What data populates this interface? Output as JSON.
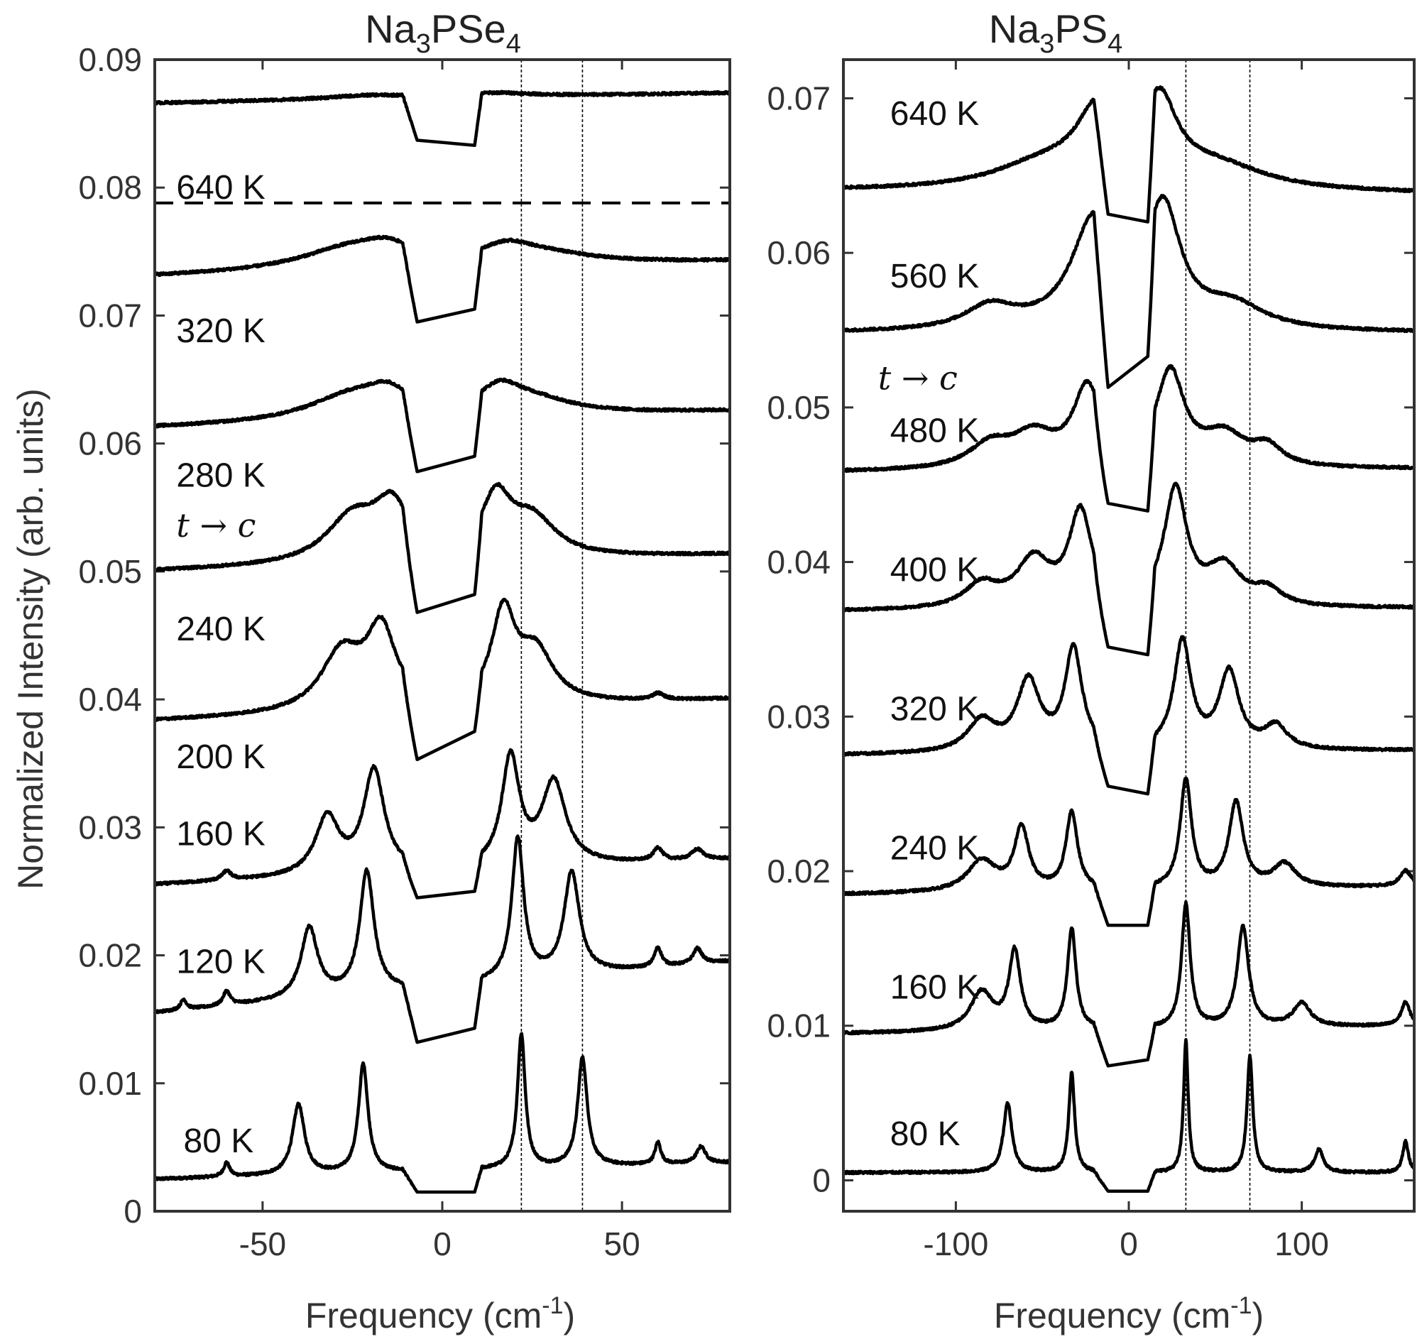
{
  "chart_data": [
    {
      "type": "line",
      "title": "Na3PSe4",
      "title_parts": {
        "pre": "Na",
        "sub1": "3",
        "mid": "PSe",
        "sub2": "4"
      },
      "xlabel": "Frequency (cm-1)",
      "xlabel_parts": {
        "pre": "Frequency (cm",
        "sup": "-1",
        "post": ")"
      },
      "ylabel": "Normalized Intensity (arb. units)",
      "xlim": [
        -80,
        80
      ],
      "ylim": [
        0,
        0.09
      ],
      "xticks": [
        -50,
        0,
        50
      ],
      "xtick_labels": [
        "-50",
        "0",
        "50"
      ],
      "yticks": [
        0,
        0.01,
        0.02,
        0.03,
        0.04,
        0.05,
        0.06,
        0.07,
        0.08,
        0.09
      ],
      "ytick_labels": [
        "0",
        "0.01",
        "0.02",
        "0.03",
        "0.04",
        "0.05",
        "0.06",
        "0.07",
        "0.08",
        "0.09"
      ],
      "vlines": [
        22,
        39
      ],
      "hline": 0.0788,
      "gap": [
        -7,
        9
      ],
      "transition_label": {
        "text": "t → c",
        "x": -74,
        "y": 0.0535
      },
      "series": [
        {
          "name": "80 K",
          "label_x": -72,
          "label_y": 0.0055,
          "baseline": 0.0025,
          "end": 0.0038,
          "gap_left": 0.0015,
          "gap_right": 0.0015,
          "peaks": [
            [
              -60,
              0.0011,
              1.0
            ],
            [
              -40,
              0.0055,
              2.0
            ],
            [
              -22,
              0.0085,
              1.6
            ],
            [
              22,
              0.0105,
              1.3
            ],
            [
              39,
              0.0085,
              1.6
            ],
            [
              60,
              0.0017,
              1.0
            ],
            [
              72,
              0.0013,
              1.5
            ]
          ]
        },
        {
          "name": "120 K",
          "label_x": -74,
          "label_y": 0.0195,
          "baseline": 0.0155,
          "end": 0.0195,
          "gap_left": 0.0132,
          "gap_right": 0.0143,
          "peaks": [
            [
              -72,
              0.0008,
              1.0
            ],
            [
              -60,
              0.0011,
              1.2
            ],
            [
              -37,
              0.0055,
              2.8
            ],
            [
              -21,
              0.0095,
              2.4
            ],
            [
              21,
              0.011,
              2.0
            ],
            [
              36,
              0.008,
              2.6
            ],
            [
              60,
              0.0015,
              1.2
            ],
            [
              71,
              0.0012,
              1.5
            ]
          ]
        },
        {
          "name": "160 K",
          "label_x": -74,
          "label_y": 0.0295,
          "baseline": 0.0255,
          "end": 0.0275,
          "gap_left": 0.0245,
          "gap_right": 0.025,
          "peaks": [
            [
              -60,
              0.0007,
              1.5
            ],
            [
              -32,
              0.0045,
              4.0
            ],
            [
              -19,
              0.008,
              3.5
            ],
            [
              19,
              0.0085,
              3.0
            ],
            [
              31,
              0.0065,
              4.0
            ],
            [
              60,
              0.001,
              1.5
            ],
            [
              71,
              0.0008,
              2.0
            ]
          ]
        },
        {
          "name": "200 K",
          "label_x": -74,
          "label_y": 0.0355,
          "baseline": 0.0383,
          "end": 0.04,
          "gap_left": 0.0353,
          "gap_right": 0.0375,
          "peaks": [
            [
              -28,
              0.0045,
              7.0
            ],
            [
              -17,
              0.006,
              5.0
            ],
            [
              17,
              0.007,
              4.0
            ],
            [
              26,
              0.004,
              6.0
            ],
            [
              60,
              0.0005,
              2.0
            ]
          ]
        },
        {
          "name": "240 K",
          "label_x": -74,
          "label_y": 0.0455,
          "baseline": 0.05,
          "end": 0.0513,
          "gap_left": 0.0468,
          "gap_right": 0.0482,
          "peaks": [
            [
              -25,
              0.0035,
              9.0
            ],
            [
              -14,
              0.004,
              6.0
            ],
            [
              15,
              0.0045,
              5.0
            ],
            [
              25,
              0.003,
              8.0
            ]
          ]
        },
        {
          "name": "280 K",
          "label_x": -74,
          "label_y": 0.0575,
          "baseline": 0.0612,
          "end": 0.0625,
          "gap_left": 0.0578,
          "gap_right": 0.059,
          "peaks": [
            [
              -25,
              0.002,
              15.0
            ],
            [
              -15,
              0.0015,
              7.0
            ],
            [
              16,
              0.0018,
              7.0
            ],
            [
              25,
              0.0012,
              14.0
            ]
          ]
        },
        {
          "name": "320 K",
          "label_x": -74,
          "label_y": 0.0688,
          "baseline": 0.073,
          "end": 0.0742,
          "gap_left": 0.0695,
          "gap_right": 0.0705,
          "peaks": [
            [
              -25,
              0.0018,
              18.0
            ],
            [
              -15,
              0.001,
              8.0
            ],
            [
              18,
              0.0012,
              9.0
            ],
            [
              28,
              0.0008,
              18.0
            ]
          ]
        },
        {
          "name": "640 K",
          "label_x": -74,
          "label_y": 0.08,
          "baseline": 0.0866,
          "end": 0.0874,
          "gap_left": 0.0837,
          "gap_right": 0.0833,
          "peaks": [
            [
              -20,
              0.0003,
              15.0
            ],
            [
              15,
              0.0003,
              12.0
            ]
          ]
        }
      ]
    },
    {
      "type": "line",
      "title": "Na3PS4",
      "title_parts": {
        "pre": "Na",
        "sub1": "3",
        "mid": "PS",
        "sub2": "4"
      },
      "xlabel": "Frequency (cm-1)",
      "xlabel_parts": {
        "pre": "Frequency (cm",
        "sup": "-1",
        "post": ")"
      },
      "xlim": [
        -165,
        165
      ],
      "ylim": [
        -0.002,
        0.0725
      ],
      "xticks": [
        -100,
        0,
        100
      ],
      "xtick_labels": [
        "-100",
        "0",
        "100"
      ],
      "yticks": [
        0,
        0.01,
        0.02,
        0.03,
        0.04,
        0.05,
        0.06,
        0.07
      ],
      "ytick_labels": [
        "0",
        "0.01",
        "0.02",
        "0.03",
        "0.04",
        "0.05",
        "0.06",
        "0.07"
      ],
      "vlines": [
        33,
        70
      ],
      "gap": [
        -12,
        11
      ],
      "transition_label": {
        "text": "t → c",
        "x": -145,
        "y": 0.0518
      },
      "series": [
        {
          "name": "80 K",
          "label_x": -138,
          "label_y": 0.003,
          "baseline": 0.0005,
          "end": 0.0005,
          "gap_left": -0.0007,
          "gap_right": -0.0007,
          "peaks": [
            [
              -70,
              0.0045,
              3.0
            ],
            [
              -33,
              0.0065,
              2.0
            ],
            [
              33,
              0.0085,
              1.6
            ],
            [
              70,
              0.0075,
              2.0
            ],
            [
              110,
              0.0015,
              3.0
            ],
            [
              160,
              0.002,
              2.0
            ]
          ]
        },
        {
          "name": "160 K",
          "label_x": -138,
          "label_y": 0.0125,
          "baseline": 0.0095,
          "end": 0.01,
          "gap_left": 0.0074,
          "gap_right": 0.0078,
          "peaks": [
            [
              -85,
              0.0025,
              8.0
            ],
            [
              -66,
              0.005,
              4.0
            ],
            [
              -33,
              0.0065,
              3.0
            ],
            [
              33,
              0.008,
              3.0
            ],
            [
              66,
              0.0065,
              4.0
            ],
            [
              100,
              0.0015,
              6.0
            ],
            [
              160,
              0.0015,
              3.0
            ]
          ]
        },
        {
          "name": "240 K",
          "label_x": -138,
          "label_y": 0.0215,
          "baseline": 0.0185,
          "end": 0.019,
          "gap_left": 0.0165,
          "gap_right": 0.0165,
          "peaks": [
            [
              -85,
              0.002,
              10.0
            ],
            [
              -62,
              0.004,
              5.0
            ],
            [
              -33,
              0.005,
              4.0
            ],
            [
              33,
              0.007,
              4.0
            ],
            [
              62,
              0.0055,
              5.0
            ],
            [
              90,
              0.0015,
              8.0
            ],
            [
              160,
              0.001,
              4.0
            ]
          ]
        },
        {
          "name": "320 K",
          "label_x": -138,
          "label_y": 0.0305,
          "baseline": 0.0275,
          "end": 0.0278,
          "gap_left": 0.0255,
          "gap_right": 0.025,
          "peaks": [
            [
              -85,
              0.002,
              10.0
            ],
            [
              -58,
              0.0045,
              8.0
            ],
            [
              -32,
              0.0065,
              6.0
            ],
            [
              31,
              0.007,
              6.0
            ],
            [
              58,
              0.005,
              7.0
            ],
            [
              85,
              0.0015,
              8.0
            ]
          ]
        },
        {
          "name": "400 K",
          "label_x": -138,
          "label_y": 0.0395,
          "baseline": 0.0368,
          "end": 0.037,
          "gap_left": 0.0345,
          "gap_right": 0.034,
          "peaks": [
            [
              -85,
              0.0015,
              12.0
            ],
            [
              -55,
              0.003,
              12.0
            ],
            [
              -28,
              0.006,
              8.0
            ],
            [
              27,
              0.0075,
              8.0
            ],
            [
              55,
              0.0025,
              12.0
            ],
            [
              80,
              0.001,
              10.0
            ]
          ]
        },
        {
          "name": "480 K",
          "label_x": -138,
          "label_y": 0.0485,
          "baseline": 0.0458,
          "end": 0.046,
          "gap_left": 0.0438,
          "gap_right": 0.0433,
          "peaks": [
            [
              -80,
              0.0015,
              15.0
            ],
            [
              -55,
              0.002,
              15.0
            ],
            [
              -24,
              0.005,
              10.0
            ],
            [
              24,
              0.006,
              10.0
            ],
            [
              55,
              0.002,
              15.0
            ],
            [
              80,
              0.0012,
              10.0
            ]
          ]
        },
        {
          "name": "560 K",
          "label_x": -138,
          "label_y": 0.0585,
          "baseline": 0.0548,
          "end": 0.0548,
          "gap_left": 0.0513,
          "gap_right": 0.0533,
          "peaks": [
            [
              -80,
              0.0015,
              18.0
            ],
            [
              -20,
              0.007,
              16.0
            ],
            [
              20,
              0.0075,
              12.0
            ],
            [
              60,
              0.0015,
              22.0
            ]
          ]
        },
        {
          "name": "640 K",
          "label_x": -138,
          "label_y": 0.069,
          "baseline": 0.064,
          "end": 0.0638,
          "gap_left": 0.0625,
          "gap_right": 0.062,
          "peaks": [
            [
              -50,
              0.0015,
              35.0
            ],
            [
              -18,
              0.0045,
              15.0
            ],
            [
              18,
              0.005,
              12.0
            ],
            [
              50,
              0.0015,
              35.0
            ]
          ]
        }
      ]
    }
  ]
}
